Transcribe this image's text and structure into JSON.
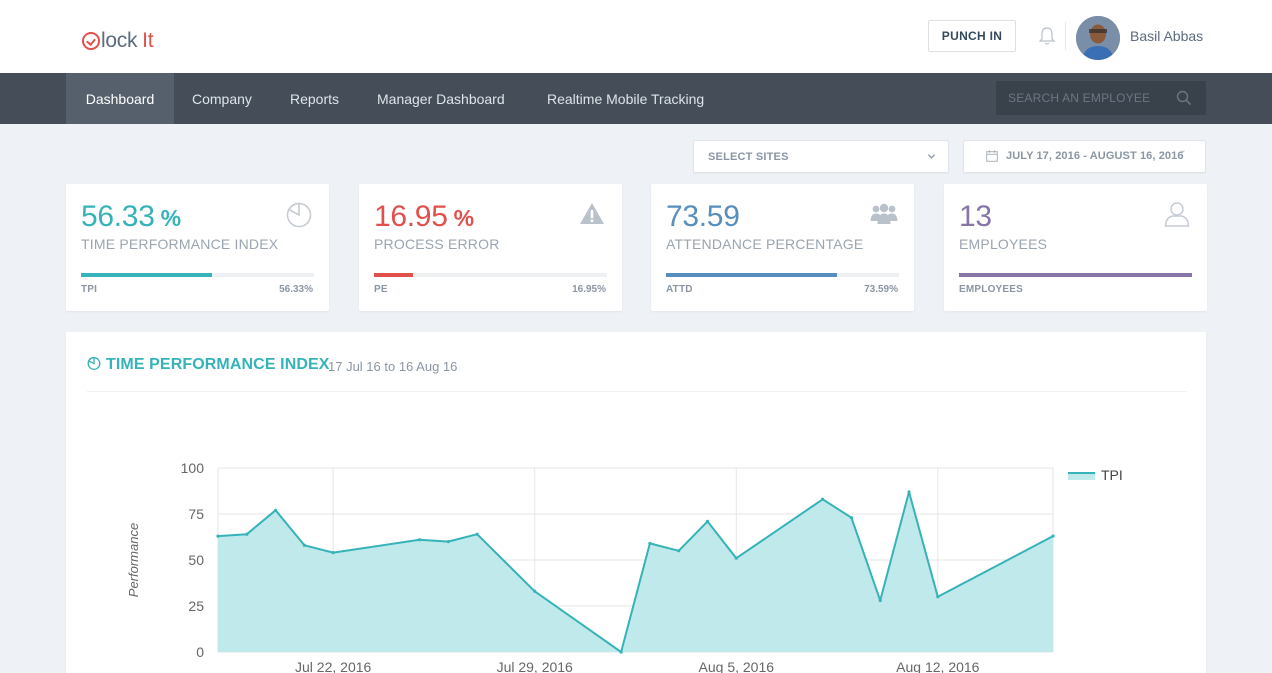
{
  "app": {
    "logo_part1": "lock",
    "logo_part2": "It"
  },
  "header": {
    "punch_label": "PUNCH IN",
    "user_name": "Basil Abbas"
  },
  "nav": {
    "items": [
      {
        "label": "Dashboard",
        "active": true
      },
      {
        "label": "Company"
      },
      {
        "label": "Reports"
      },
      {
        "label": "Manager Dashboard"
      },
      {
        "label": "Realtime Mobile Tracking"
      }
    ],
    "search_placeholder": "SEARCH AN EMPLOYEE"
  },
  "filters": {
    "sites_label": "SELECT SITES",
    "date_range": "JULY 17, 2016 - AUGUST 16, 2016"
  },
  "cards": [
    {
      "value": "56.33",
      "unit": "%",
      "title": "TIME PERFORMANCE INDEX",
      "sub_left": "TPI",
      "sub_right": "56.33%",
      "progress": 0.5633,
      "color": "#36b3b8",
      "icon": "pie-chart-icon"
    },
    {
      "value": "16.95",
      "unit": "%",
      "title": "PROCESS ERROR",
      "sub_left": "PE",
      "sub_right": "16.95%",
      "progress": 0.1695,
      "color": "#e2504c",
      "icon": "warning-icon"
    },
    {
      "value": "73.59",
      "unit": "",
      "title": "ATTENDANCE PERCENTAGE",
      "sub_left": "ATTD",
      "sub_right": "73.59%",
      "progress": 0.7359,
      "color": "#578ebe",
      "icon": "users-icon"
    },
    {
      "value": "13",
      "unit": "",
      "title": "EMPLOYEES",
      "sub_left": "EMPLOYEES",
      "sub_right": "",
      "progress": 1.0,
      "color": "#8775a7",
      "icon": "user-icon"
    }
  ],
  "panel": {
    "title": "TIME PERFORMANCE INDEX",
    "subtitle": "17 Jul 16 to 16 Aug 16"
  },
  "chart_data": {
    "type": "area",
    "title": "",
    "xlabel": "",
    "ylabel": "Performance",
    "ylim": [
      0,
      100
    ],
    "yticks": [
      0,
      25,
      50,
      75,
      100
    ],
    "xticks": [
      "Jul 22, 2016",
      "Jul 29, 2016",
      "Aug 5, 2016",
      "Aug 12, 2016"
    ],
    "xtick_dates": [
      "2016-07-22",
      "2016-07-29",
      "2016-08-05",
      "2016-08-12"
    ],
    "x_range": [
      "2016-07-18",
      "2016-08-16"
    ],
    "legend": "top-right",
    "grid": true,
    "color": "#36b3b8",
    "fill": "#c0e9ec",
    "series": [
      {
        "name": "TPI",
        "x": [
          "2016-07-18",
          "2016-07-19",
          "2016-07-20",
          "2016-07-21",
          "2016-07-22",
          "2016-07-25",
          "2016-07-26",
          "2016-07-27",
          "2016-07-29",
          "2016-08-01",
          "2016-08-02",
          "2016-08-03",
          "2016-08-04",
          "2016-08-05",
          "2016-08-08",
          "2016-08-09",
          "2016-08-10",
          "2016-08-11",
          "2016-08-12",
          "2016-08-16"
        ],
        "values": [
          63,
          64,
          77,
          58,
          54,
          61,
          60,
          64,
          33,
          0,
          59,
          55,
          71,
          51,
          83,
          73,
          28,
          87,
          30,
          63
        ]
      }
    ]
  }
}
